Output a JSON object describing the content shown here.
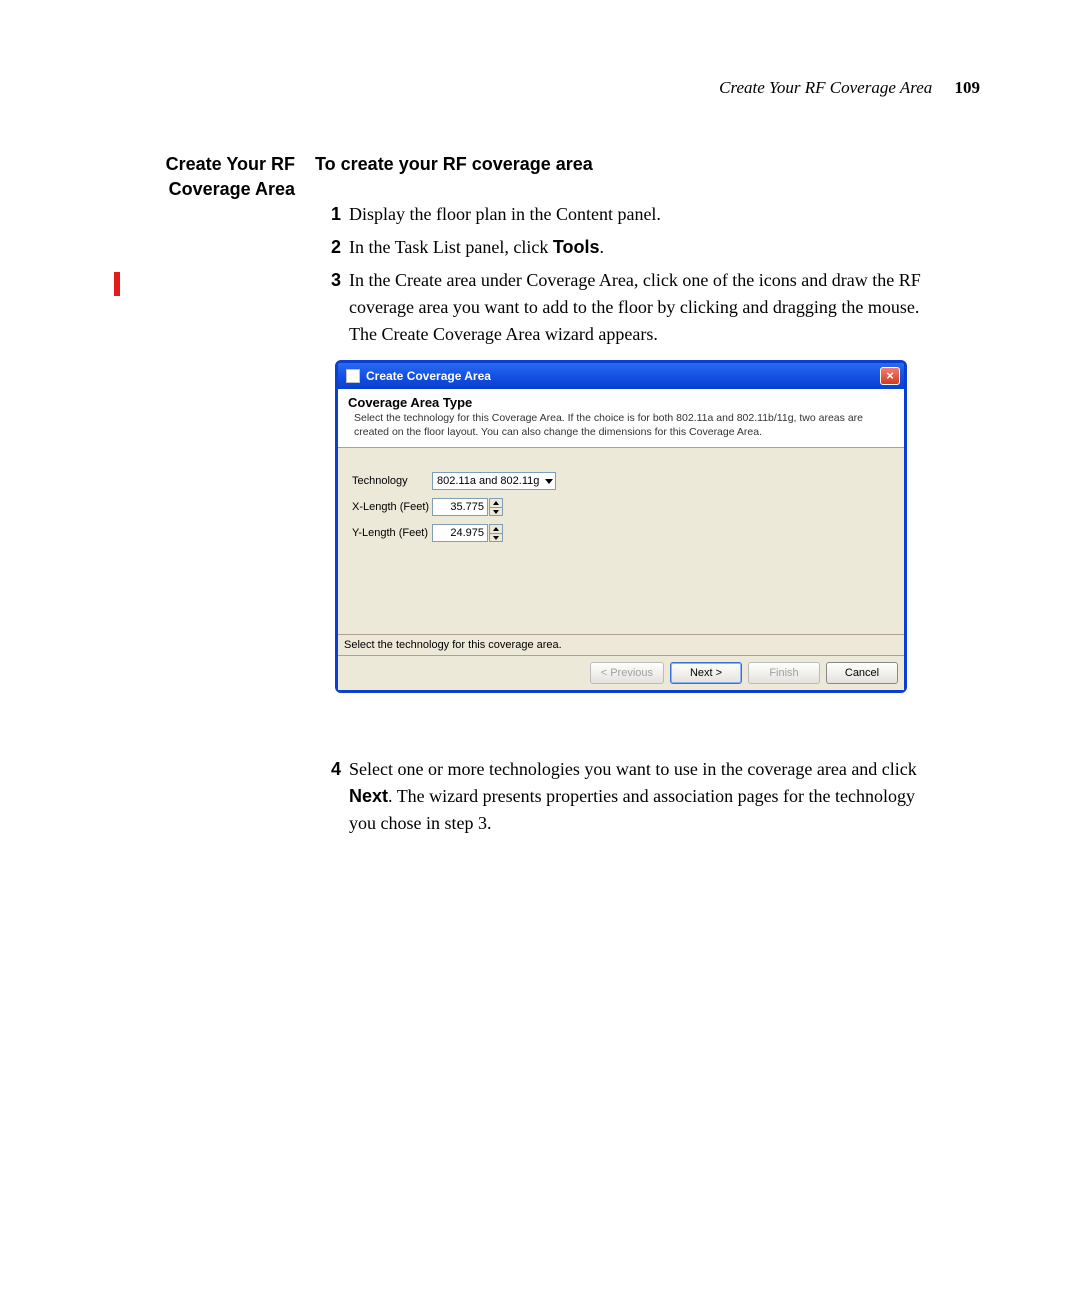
{
  "header": {
    "running_title": "Create Your RF Coverage Area",
    "page_number": "109"
  },
  "sidebar": {
    "heading": "Create Your RF Coverage Area"
  },
  "content": {
    "intro": "To create your RF coverage area",
    "steps": {
      "n1": "1",
      "s1": "Display the floor plan in the Content panel.",
      "n2": "2",
      "s2a": "In the Task List panel, click ",
      "s2b_bold": "Tools",
      "s2c": ".",
      "n3": "3",
      "s3": "In the Create area under Coverage Area, click one of the icons and draw the RF coverage area you want to add to the floor by clicking and dragging the mouse. The Create Coverage Area wizard appears.",
      "n4": "4",
      "s4a": "Select one or more technologies you want to use in the coverage area and click ",
      "s4b_bold": "Next",
      "s4c": ". The wizard presents properties and association pages for the technology you chose in step 3."
    }
  },
  "wizard": {
    "title": "Create Coverage Area",
    "close_glyph": "×",
    "heading": "Coverage Area Type",
    "description": "Select the technology for this Coverage Area. If the choice is for both 802.11a and 802.11b/11g, two areas are created on the floor layout. You can also change the dimensions for this Coverage Area.",
    "labels": {
      "technology": "Technology",
      "xlen": "X-Length (Feet)",
      "ylen": "Y-Length (Feet)"
    },
    "values": {
      "technology": "802.11a and 802.11g",
      "xlen": "35.775",
      "ylen": "24.975"
    },
    "status": "Select the technology for this coverage area.",
    "buttons": {
      "previous": "< Previous",
      "next": "Next >",
      "finish": "Finish",
      "cancel": "Cancel"
    },
    "colors": {
      "frame_border": "#0a3fcf",
      "body_bg": "#ece9d8",
      "input_border": "#7f9db9",
      "close_bg_top": "#f08070",
      "close_bg_bottom": "#d43a20"
    }
  },
  "change_bar_color": "#e41b1b"
}
